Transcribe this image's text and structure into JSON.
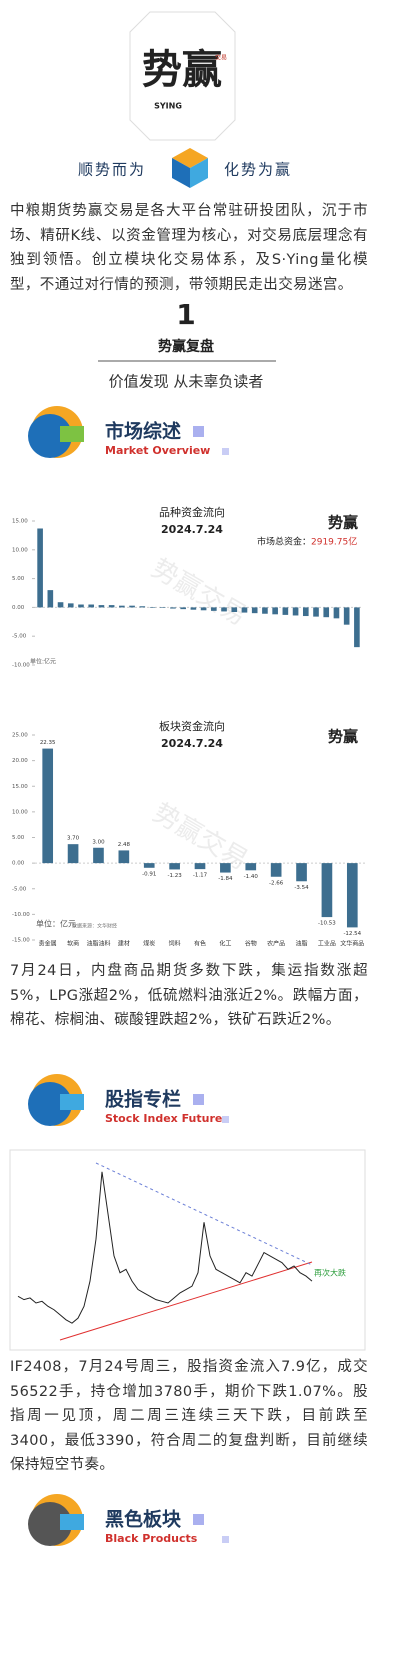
{
  "brand": {
    "name": "势赢",
    "latin": "SYING",
    "seal": "交易"
  },
  "slogan": {
    "left": "顺势而为",
    "right": "化势为赢"
  },
  "intro": "中粮期货势赢交易是各大平台常驻研投团队，沉于市场、精研K线、以资金管理为核心，对交易底层理念有独到领悟。创立模块化交易体系，及S·Ying量化模型，不通过对行情的预测，带领期民走出交易迷宫。",
  "section": {
    "number": "1",
    "title": "势赢复盘",
    "subtitle": "价值发现 从未辜负读者"
  },
  "headers": [
    {
      "title": "市场综述",
      "subtitle": "Market Overview"
    },
    {
      "title": "股指专栏",
      "subtitle": "Stock Index Futures"
    },
    {
      "title": "黑色板块",
      "subtitle": "Black Products"
    }
  ],
  "watermark": "势赢交易",
  "chart_data": [
    {
      "type": "bar",
      "title": "品种资金流向",
      "subtitle": "2024.7.24",
      "total_label": "市场总资金：",
      "total_value": "2919.75亿",
      "unit": "单位:亿元",
      "color": "#3d6e8f",
      "categories": [
        null,
        null,
        null,
        null,
        null,
        null,
        null,
        null,
        null,
        null,
        null,
        null,
        null,
        null,
        null,
        null,
        null,
        null,
        null,
        null,
        null,
        null,
        null,
        null,
        null,
        null,
        null,
        null,
        null,
        null,
        null,
        null
      ],
      "values": [
        13.7,
        3.0,
        0.9,
        0.7,
        0.5,
        0.5,
        0.4,
        0.4,
        0.3,
        0.3,
        0.2,
        -0.1,
        -0.1,
        -0.2,
        -0.3,
        -0.4,
        -0.5,
        -0.6,
        -0.7,
        -0.8,
        -0.9,
        -1.0,
        -1.1,
        -1.2,
        -1.3,
        -1.4,
        -1.5,
        -1.6,
        -1.7,
        -1.9,
        -3.0,
        -6.9
      ],
      "ylim": [
        -10,
        15
      ],
      "yticks": [
        {
          "value": 15,
          "label": "15.00"
        },
        {
          "value": 10,
          "label": "10.00"
        },
        {
          "value": 5,
          "label": "5.00"
        },
        {
          "value": 0,
          "label": "0.00"
        },
        {
          "value": -5,
          "label": "-5.00"
        },
        {
          "value": -10,
          "label": "-10.00"
        }
      ]
    },
    {
      "type": "bar",
      "title": "板块资金流向",
      "subtitle": "2024.7.24",
      "unit": "单位：亿元",
      "source": "数据来源：文华财经",
      "color": "#3d6e8f",
      "categories": [
        "贵金属",
        "软商",
        "油脂油料",
        "建材",
        "煤炭",
        "饲料",
        "有色",
        "化工",
        "谷物",
        "农产品",
        "油脂",
        "工业品",
        "文华商品"
      ],
      "values": [
        22.35,
        3.7,
        3.0,
        2.48,
        -0.91,
        -1.23,
        -1.17,
        -1.84,
        -1.4,
        -2.66,
        -3.54,
        -10.53,
        -12.54
      ],
      "value_labels": [
        "22.35",
        "3.70",
        "3.00",
        "2.48",
        "-0.91",
        "-1.23",
        "-1.17",
        "-1.84",
        "-1.40",
        "-2.66",
        "-3.54",
        "-10.53",
        "-12.54"
      ],
      "ylim": [
        -15,
        25
      ],
      "yticks": [
        {
          "value": 25,
          "label": "25.00"
        },
        {
          "value": 20,
          "label": "20.00"
        },
        {
          "value": 15,
          "label": "15.00"
        },
        {
          "value": 10,
          "label": "10.00"
        },
        {
          "value": 5,
          "label": "5.00"
        },
        {
          "value": 0,
          "label": "0.00"
        },
        {
          "value": -5,
          "label": "-5.00"
        },
        {
          "value": -10,
          "label": "-10.00"
        },
        {
          "value": -15,
          "label": "-15.00"
        }
      ]
    },
    {
      "type": "line",
      "annotation": "再次大跌",
      "color": "#222222",
      "values": [
        3560,
        3540,
        3550,
        3520,
        3530,
        3500,
        3480,
        3450,
        3420,
        3400,
        3430,
        3500,
        3650,
        3900,
        4300,
        4050,
        3800,
        3700,
        3720,
        3650,
        3600,
        3580,
        3560,
        3540,
        3530,
        3520,
        3550,
        3580,
        3600,
        3620,
        3700,
        4000,
        3800,
        3720,
        3700,
        3680,
        3660,
        3640,
        3700,
        3680,
        3750,
        3820,
        3800,
        3780,
        3760,
        3720,
        3740,
        3700,
        3680,
        3650
      ],
      "ylim": [
        3300,
        4400
      ]
    }
  ],
  "paragraphs": [
    "7月24日，内盘商品期货多数下跌，集运指数涨超5%，LPG涨超2%，低硫燃料油涨近2%。跌幅方面，棉花、棕榈油、碳酸锂跌超2%，铁矿石跌近2%。",
    "IF2408，7月24号周三，股指资金流入7.9亿，成交56522手，持仓增加3780手，期价下跌1.07%。股指周一见顶，周二周三连续三天下跌，目前跌至3400，最低3390，符合周二的复盘判断，目前继续保持短空节奏。"
  ]
}
